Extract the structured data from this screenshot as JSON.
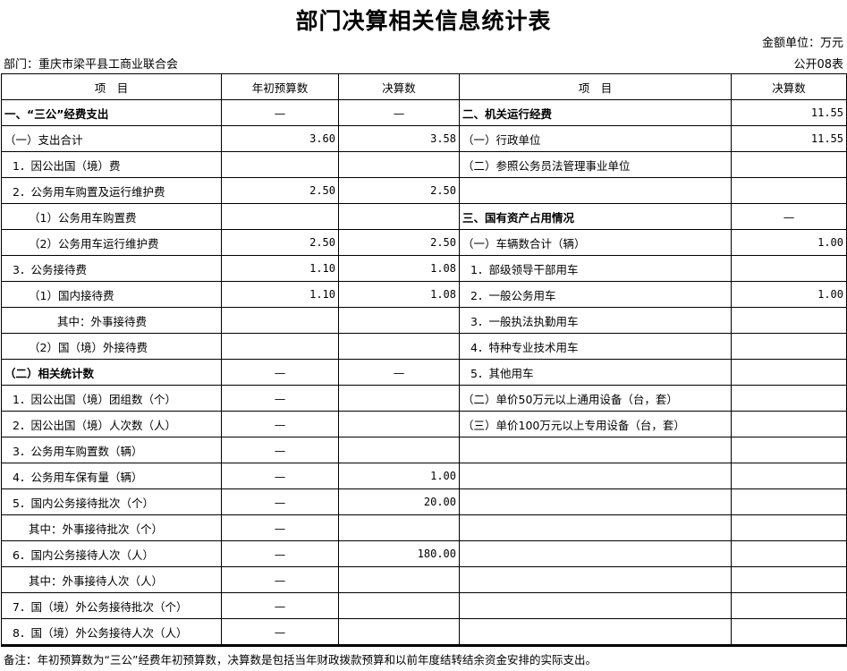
{
  "title": "部门决算相关信息统计表",
  "unit": "金额单位：万元",
  "department": "部门：重庆市梁平县工商业联合会",
  "table_code": "公开08表",
  "headers": [
    "项　目",
    "年初预算数",
    "决算数",
    "项　目",
    "决算数"
  ],
  "rows": [
    {
      "l": "一、“三公”经费支出",
      "lb": true,
      "li": 0,
      "b": "—",
      "d": "—",
      "r": "二、机关运行经费",
      "rb": true,
      "ri": 0,
      "rv": "11.55"
    },
    {
      "l": "（一）支出合计",
      "li": 0,
      "b": "3.60",
      "d": "3.58",
      "r": "（一）行政单位",
      "ri": 0,
      "rv": "11.55"
    },
    {
      "l": "1．因公出国（境）费",
      "li": 1,
      "b": "",
      "d": "",
      "r": "（二）参照公务员法管理事业单位",
      "ri": 0,
      "rv": ""
    },
    {
      "l": "2．公务用车购置及运行维护费",
      "li": 1,
      "b": "2.50",
      "d": "2.50",
      "r": "",
      "ri": 0,
      "rv": ""
    },
    {
      "l": "（1）公务用车购置费",
      "li": 2,
      "b": "",
      "d": "",
      "r": "三、国有资产占用情况",
      "rb": true,
      "ri": 0,
      "rv": "—"
    },
    {
      "l": "（2）公务用车运行维护费",
      "li": 2,
      "b": "2.50",
      "d": "2.50",
      "r": "（一）车辆数合计（辆）",
      "ri": 0,
      "rv": "1.00"
    },
    {
      "l": "3．公务接待费",
      "li": 1,
      "b": "1.10",
      "d": "1.08",
      "r": "1．部级领导干部用车",
      "ri": 1,
      "rv": ""
    },
    {
      "l": "（1）国内接待费",
      "li": 2,
      "b": "1.10",
      "d": "1.08",
      "r": "2．一般公务用车",
      "ri": 1,
      "rv": "1.00"
    },
    {
      "l": "其中：外事接待费",
      "li": 3,
      "b": "",
      "d": "",
      "r": "3．一般执法执勤用车",
      "ri": 1,
      "rv": ""
    },
    {
      "l": "（2）国（境）外接待费",
      "li": 2,
      "b": "",
      "d": "",
      "r": "4．特种专业技术用车",
      "ri": 1,
      "rv": ""
    },
    {
      "l": "（二）相关统计数",
      "lb": true,
      "li": 0,
      "b": "—",
      "d": "—",
      "r": "5．其他用车",
      "ri": 1,
      "rv": ""
    },
    {
      "l": "1．因公出国（境）团组数（个）",
      "li": 1,
      "b": "—",
      "d": "",
      "r": "（二）单价50万元以上通用设备（台，套）",
      "ri": 0,
      "rv": ""
    },
    {
      "l": "2．因公出国（境）人次数（人）",
      "li": 1,
      "b": "—",
      "d": "",
      "r": "（三）单价100万元以上专用设备（台，套）",
      "ri": 0,
      "rv": ""
    },
    {
      "l": "3．公务用车购置数（辆）",
      "li": 1,
      "b": "—",
      "d": "",
      "r": "",
      "ri": 0,
      "rv": ""
    },
    {
      "l": "4．公务用车保有量（辆）",
      "li": 1,
      "b": "—",
      "d": "1.00",
      "r": "",
      "ri": 0,
      "rv": ""
    },
    {
      "l": "5．国内公务接待批次（个）",
      "li": 1,
      "b": "—",
      "d": "20.00",
      "r": "",
      "ri": 0,
      "rv": ""
    },
    {
      "l": "其中：外事接待批次（个）",
      "li": 2,
      "b": "—",
      "d": "",
      "r": "",
      "ri": 0,
      "rv": ""
    },
    {
      "l": "6．国内公务接待人次（人）",
      "li": 1,
      "b": "—",
      "d": "180.00",
      "r": "",
      "ri": 0,
      "rv": ""
    },
    {
      "l": "其中：外事接待人次（人）",
      "li": 2,
      "b": "—",
      "d": "",
      "r": "",
      "ri": 0,
      "rv": ""
    },
    {
      "l": "7．国（境）外公务接待批次（个）",
      "li": 1,
      "b": "—",
      "d": "",
      "r": "",
      "ri": 0,
      "rv": ""
    },
    {
      "l": "8．国（境）外公务接待人次（人）",
      "li": 1,
      "b": "—",
      "d": "",
      "r": "",
      "ri": 0,
      "rv": ""
    }
  ],
  "note": "备注：年初预算数为“三公”经费年初预算数，决算数是包括当年财政拨款预算和以前年度结转结余资金安排的实际支出。"
}
